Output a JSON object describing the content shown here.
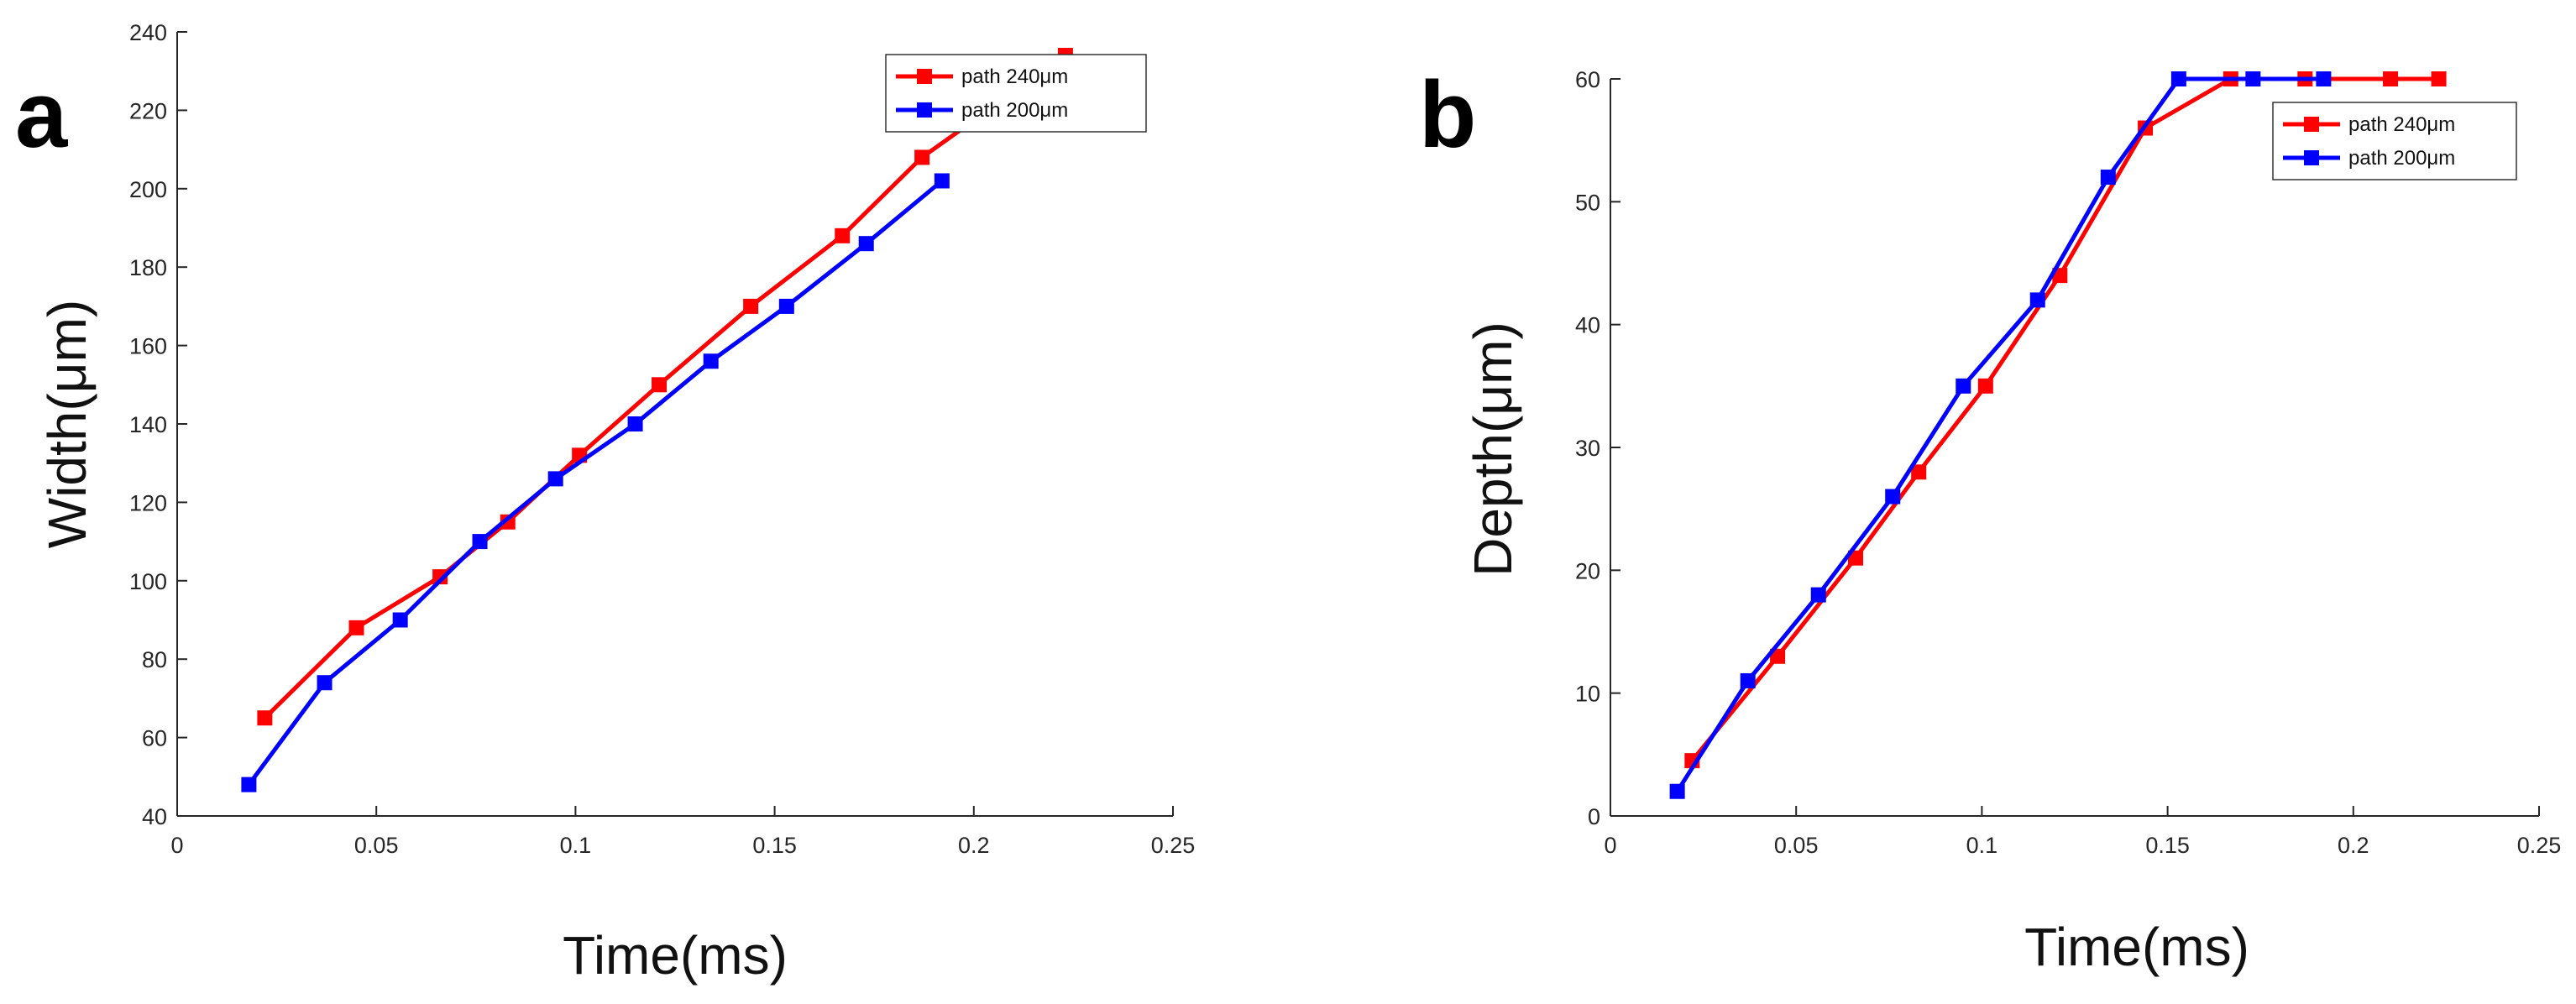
{
  "chart_data": [
    {
      "type": "line",
      "panel_label": "a",
      "xlabel": "Time(ms)",
      "ylabel": "Width(μm)",
      "xlim": [
        0,
        0.25
      ],
      "ylim": [
        40,
        240
      ],
      "xticks": [
        0,
        0.05,
        0.1,
        0.15,
        0.2,
        0.25
      ],
      "yticks": [
        40,
        60,
        80,
        100,
        120,
        140,
        160,
        180,
        200,
        220,
        240
      ],
      "xtick_labels": [
        "0",
        "0.05",
        "0.1",
        "0.15",
        "0.2",
        "0.25"
      ],
      "ytick_labels": [
        "40",
        "60",
        "80",
        "100",
        "120",
        "140",
        "160",
        "180",
        "200",
        "220",
        "240"
      ],
      "grid": false,
      "legend_position": "top-right",
      "series": [
        {
          "name": "path 240μm",
          "color": "#ff0000",
          "marker": "square",
          "x": [
            0.022,
            0.045,
            0.066,
            0.083,
            0.101,
            0.121,
            0.144,
            0.167,
            0.187,
            0.223
          ],
          "y": [
            65,
            88,
            101,
            115,
            132,
            150,
            170,
            188,
            208,
            234
          ]
        },
        {
          "name": "path 200μm",
          "color": "#0000ff",
          "marker": "square",
          "x": [
            0.018,
            0.037,
            0.056,
            0.076,
            0.095,
            0.115,
            0.134,
            0.153,
            0.173,
            0.192
          ],
          "y": [
            48,
            74,
            90,
            110,
            126,
            140,
            156,
            170,
            186,
            202
          ]
        }
      ]
    },
    {
      "type": "line",
      "panel_label": "b",
      "xlabel": "Time(ms)",
      "ylabel": "Depth(μm)",
      "xlim": [
        0,
        0.25
      ],
      "ylim": [
        0,
        60
      ],
      "xticks": [
        0,
        0.05,
        0.1,
        0.15,
        0.2,
        0.25
      ],
      "yticks": [
        0,
        10,
        20,
        30,
        40,
        50,
        60
      ],
      "xtick_labels": [
        "0",
        "0.05",
        "0.1",
        "0.15",
        "0.2",
        "0.25"
      ],
      "ytick_labels": [
        "0",
        "10",
        "20",
        "30",
        "40",
        "50",
        "60"
      ],
      "grid": false,
      "legend_position": "top-right",
      "series": [
        {
          "name": "path 240μm",
          "color": "#ff0000",
          "marker": "square",
          "x": [
            0.022,
            0.045,
            0.066,
            0.083,
            0.101,
            0.121,
            0.144,
            0.167,
            0.187,
            0.21,
            0.223
          ],
          "y": [
            4.5,
            13,
            21,
            28,
            35,
            44,
            56,
            60,
            60,
            60,
            60
          ]
        },
        {
          "name": "path 200μm",
          "color": "#0000ff",
          "marker": "square",
          "x": [
            0.018,
            0.037,
            0.056,
            0.076,
            0.095,
            0.115,
            0.134,
            0.153,
            0.173,
            0.192
          ],
          "y": [
            2,
            11,
            18,
            26,
            35,
            42,
            52,
            60,
            60,
            60
          ]
        }
      ]
    }
  ]
}
